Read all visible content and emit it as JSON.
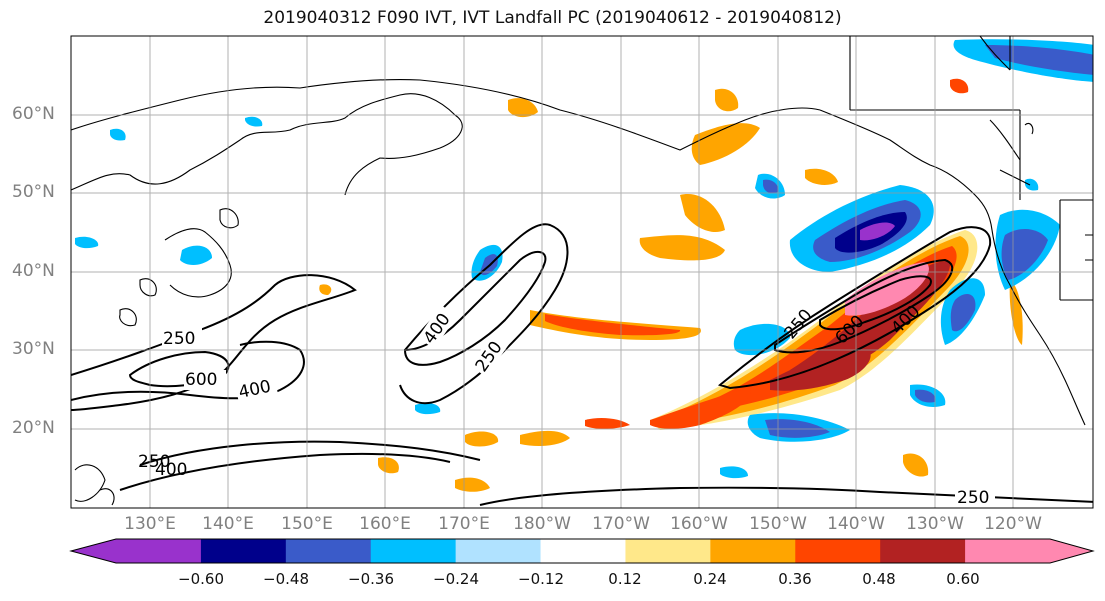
{
  "title": "2019040312 F090 IVT, IVT Landfall PC (2019040612 - 2019040812)",
  "lat_labels": [
    "60°N",
    "50°N",
    "40°N",
    "30°N",
    "20°N"
  ],
  "lon_labels": [
    "130°E",
    "140°E",
    "150°E",
    "160°E",
    "170°E",
    "180°W",
    "170°W",
    "160°W",
    "150°W",
    "140°W",
    "130°W",
    "120°W"
  ],
  "contour_labels": [
    "250",
    "400",
    "600",
    "400",
    "250",
    "400",
    "250",
    "600",
    "400",
    "250",
    "400",
    "250"
  ],
  "colorbar": {
    "ticks": [
      "−0.60",
      "−0.48",
      "−0.36",
      "−0.24",
      "−0.12",
      "0.12",
      "0.24",
      "0.36",
      "0.48",
      "0.60"
    ],
    "colors": [
      "#9932cc",
      "#00008b",
      "#3a5bc9",
      "#00bfff",
      "#b0e2ff",
      "#ffffff",
      "#ffe88a",
      "#ffa500",
      "#ff4500",
      "#b22222",
      "#ff88b0",
      "#ffb0c8"
    ]
  }
}
